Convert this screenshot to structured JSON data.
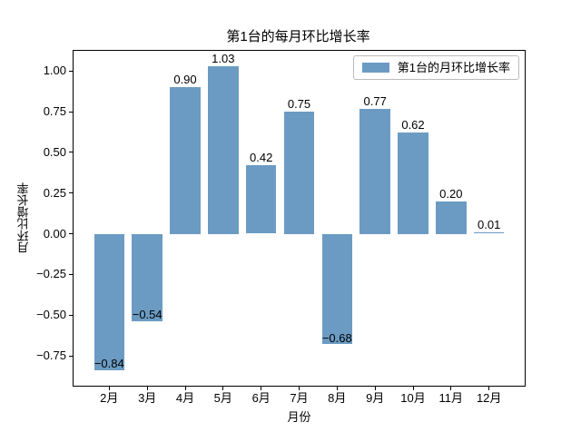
{
  "figure": {
    "background": "#ffffff"
  },
  "chart_data": {
    "type": "bar",
    "title": "第1台的每月环比增长率",
    "xlabel": "月份",
    "ylabel": "月环比增长率",
    "series_name": "第1台的月环比增长率",
    "categories": [
      "2月",
      "3月",
      "4月",
      "5月",
      "6月",
      "7月",
      "8月",
      "9月",
      "10月",
      "11月",
      "12月"
    ],
    "values": [
      -0.84,
      -0.54,
      0.9,
      1.03,
      0.42,
      0.75,
      -0.68,
      0.77,
      0.62,
      0.2,
      0.01
    ],
    "bar_labels": [
      "−0.84",
      "−0.54",
      "0.90",
      "1.03",
      "0.42",
      "0.75",
      "−0.68",
      "0.77",
      "0.62",
      "0.20",
      "0.01"
    ],
    "yticks": [
      1.0,
      0.75,
      0.5,
      0.25,
      0.0,
      -0.25,
      -0.5,
      -0.75
    ],
    "ytick_labels": [
      "1.00",
      "0.75",
      "0.50",
      "0.25",
      "0.00",
      "−0.25",
      "−0.50",
      "−0.75"
    ],
    "ylim": [
      -0.934,
      1.124
    ],
    "grid": false,
    "legend_position": "upper right",
    "bar_color": "#6b9bc3",
    "axis_color": "#000000"
  }
}
